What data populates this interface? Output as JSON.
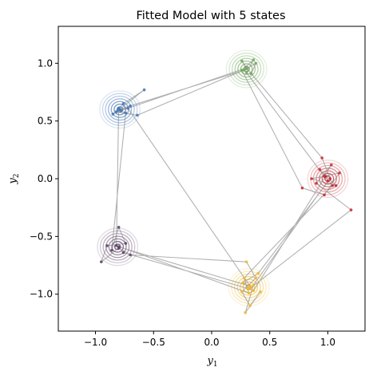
{
  "chart_data": {
    "type": "scatter",
    "title": "Fitted Model with 5 states",
    "xlabel": "y1",
    "ylabel": "y2",
    "xlim": [
      -1.32,
      1.32
    ],
    "ylim": [
      -1.32,
      1.32
    ],
    "xticks": [
      -1.0,
      -0.5,
      0.0,
      0.5,
      1.0
    ],
    "xtick_labels": [
      "−1.0",
      "−0.5",
      "0.0",
      "0.5",
      "1.0"
    ],
    "yticks": [
      -1.0,
      -0.5,
      0.0,
      0.5,
      1.0
    ],
    "ytick_labels": [
      "−1.0",
      "−0.5",
      "0.0",
      "0.5",
      "1.0"
    ],
    "grid": false,
    "trajectory_color": "#7f7f7f",
    "states": [
      {
        "mean": [
          -0.79,
          0.6
        ],
        "color": "#3f73b8"
      },
      {
        "mean": [
          0.3,
          0.95
        ],
        "color": "#6fa85a"
      },
      {
        "mean": [
          1.0,
          0.0
        ],
        "color": "#c8252e"
      },
      {
        "mean": [
          0.32,
          -0.94
        ],
        "color": "#f0b62b"
      },
      {
        "mean": [
          -0.81,
          -0.59
        ],
        "color": "#5a3d66"
      }
    ],
    "trajectory": [
      [
        -0.79,
        0.6
      ],
      [
        -0.7,
        0.63
      ],
      [
        -0.85,
        0.56
      ],
      [
        -0.76,
        0.65
      ],
      [
        -0.58,
        0.77
      ],
      [
        -0.82,
        0.58
      ],
      [
        -0.64,
        0.55
      ],
      [
        0.3,
        0.95
      ],
      [
        0.26,
        1.02
      ],
      [
        0.34,
        0.91
      ],
      [
        0.38,
        1.0
      ],
      [
        0.28,
        0.94
      ],
      [
        -0.8,
        0.6
      ],
      [
        -0.74,
        0.57
      ],
      [
        -0.86,
        -0.62
      ],
      [
        -0.8,
        -0.42
      ],
      [
        -0.74,
        -0.56
      ],
      [
        -0.9,
        -0.58
      ],
      [
        -0.95,
        -0.72
      ],
      [
        -0.8,
        -0.6
      ],
      [
        -0.7,
        -0.66
      ],
      [
        0.3,
        -0.72
      ],
      [
        0.38,
        -0.86
      ],
      [
        0.26,
        -0.98
      ],
      [
        0.33,
        -1.1
      ],
      [
        0.42,
        -0.98
      ],
      [
        0.29,
        -1.16
      ],
      [
        0.36,
        -0.92
      ],
      [
        1.0,
        -0.02
      ],
      [
        0.93,
        0.08
      ],
      [
        1.07,
        -0.06
      ],
      [
        0.86,
        0.0
      ],
      [
        1.1,
        0.05
      ],
      [
        0.97,
        -0.14
      ],
      [
        0.78,
        -0.08
      ],
      [
        0.26,
        0.94
      ],
      [
        0.36,
        1.03
      ],
      [
        0.3,
        0.92
      ],
      [
        0.97,
        0.02
      ],
      [
        1.03,
        0.12
      ],
      [
        0.9,
        -0.04
      ],
      [
        1.2,
        -0.27
      ],
      [
        0.33,
        -0.95
      ],
      [
        0.27,
        -0.9
      ],
      [
        0.4,
        -0.82
      ],
      [
        1.02,
        0.0
      ],
      [
        0.95,
        0.18
      ],
      [
        0.3,
        0.96
      ],
      [
        -0.78,
        0.59
      ],
      [
        -0.72,
        0.61
      ],
      [
        0.33,
        -0.93
      ],
      [
        -0.8,
        -0.59
      ],
      [
        -0.76,
        -0.64
      ],
      [
        0.31,
        -0.95
      ],
      [
        0.36,
        -0.97
      ],
      [
        0.98,
        0.02
      ],
      [
        1.04,
        -0.06
      ],
      [
        0.28,
        -0.86
      ],
      [
        0.32,
        -0.99
      ],
      [
        -0.82,
        -0.58
      ],
      [
        -0.8,
        0.61
      ]
    ]
  }
}
